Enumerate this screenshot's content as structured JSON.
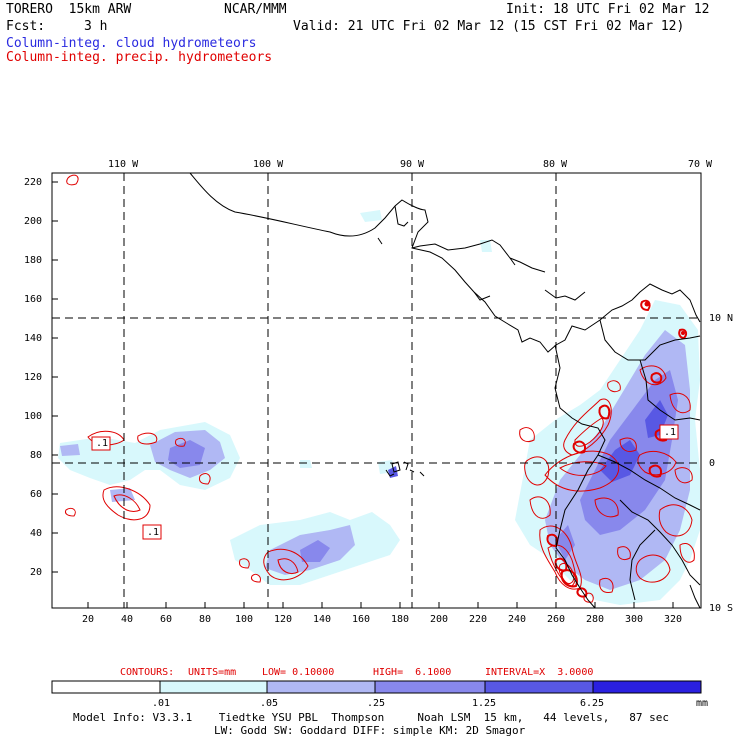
{
  "header": {
    "model": "TORERO  15km ARW",
    "center": "NCAR/MMM",
    "init": "Init: 18 UTC Fri 02 Mar 12",
    "fcst_label": "Fcst:",
    "fcst_value": "3 h",
    "valid": "Valid: 21 UTC Fri 02 Mar 12 (15 CST Fri 02 Mar 12)",
    "line_cloud": "Column-integ. cloud hydrometeors",
    "line_precip": "Column-integ. precip. hydrometeors"
  },
  "map": {
    "top_lon_labels": [
      "110 W",
      "100 W",
      "90 W",
      "80 W",
      "70 W"
    ],
    "right_lat_labels": [
      "10 N",
      "0",
      "10 S"
    ],
    "y_ticks": [
      "220",
      "200",
      "180",
      "160",
      "140",
      "120",
      "100",
      "80",
      "60",
      "40",
      "20"
    ],
    "x_ticks": [
      "20",
      "40",
      "60",
      "80",
      "100",
      "120",
      "140",
      "160",
      "180",
      "200",
      "220",
      "240",
      "260",
      "280",
      "300",
      "320"
    ],
    "contour_box_labels": [
      ".1",
      ".1",
      ".1"
    ],
    "colors": {
      "precip_contour": "#e00000",
      "level1": "#d8f8fc",
      "level2": "#b0b8f4",
      "level3": "#8888ec",
      "level4": "#5858e4",
      "level5": "#2a20e0",
      "coast": "#000000"
    }
  },
  "contour_info": {
    "label": "CONTOURS:",
    "units": "UNITS=mm",
    "low": "LOW= 0.10000",
    "high": "HIGH=  6.1000",
    "interval": "INTERVAL=X  3.0000"
  },
  "colorbar": {
    "labels": [
      ".01",
      ".05",
      ".25",
      "1.25",
      "6.25"
    ],
    "unit": "mm"
  },
  "footer": {
    "line1": "Model Info: V3.3.1    Tiedtke YSU PBL  Thompson     Noah LSM  15 km,   44 levels,   87 sec",
    "line2": "LW: Godd SW: Goddard DIFF: simple KM: 2D Smagor"
  }
}
